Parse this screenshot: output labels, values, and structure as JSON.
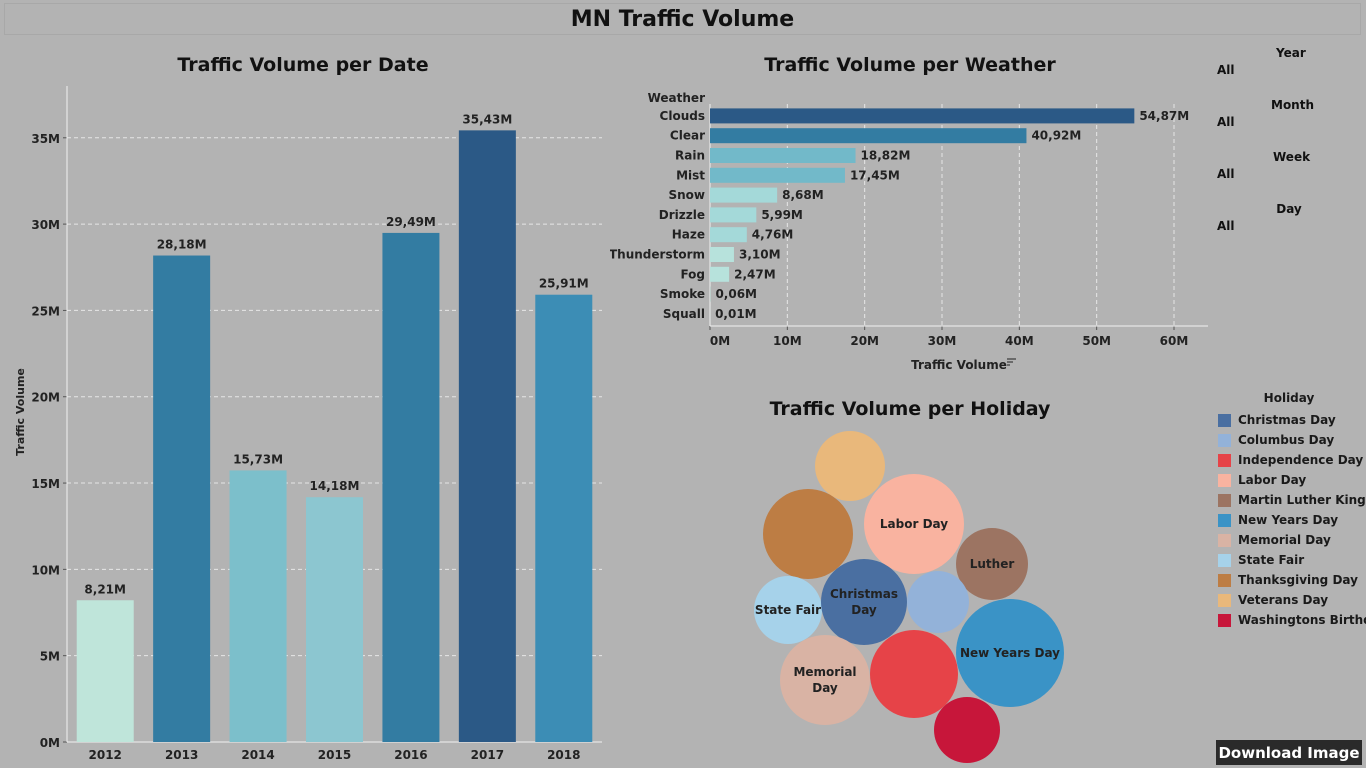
{
  "dashboard_title": "MN Traffic Volume",
  "download_label": "Download Image",
  "filters": [
    {
      "label": "Year",
      "value": "All"
    },
    {
      "label": "Month",
      "value": "All"
    },
    {
      "label": "Week",
      "value": "All"
    },
    {
      "label": "Day",
      "value": "All"
    }
  ],
  "legend": {
    "title": "Holiday",
    "items": [
      {
        "label": "Christmas Day",
        "color": "#4a6fa1"
      },
      {
        "label": "Columbus Day",
        "color": "#93b2d9"
      },
      {
        "label": "Independence Day",
        "color": "#e64348"
      },
      {
        "label": "Labor Day",
        "color": "#f9b3a0"
      },
      {
        "label": "Martin Luther King J..",
        "color": "#9c7462"
      },
      {
        "label": "New Years Day",
        "color": "#3a93c6"
      },
      {
        "label": "Memorial Day",
        "color": "#d9b3a4"
      },
      {
        "label": "State Fair",
        "color": "#a6d2ea"
      },
      {
        "label": "Thanksgiving Day",
        "color": "#bd7d44"
      },
      {
        "label": "Veterans Day",
        "color": "#e9b87b"
      },
      {
        "label": "Washingtons Birthd..",
        "color": "#c7163a"
      }
    ]
  },
  "chart_data": [
    {
      "id": "date",
      "type": "bar",
      "title": "Traffic Volume per Date",
      "ylabel": "Traffic Volume",
      "xlabel": "",
      "ylim": [
        0,
        38
      ],
      "yticks": [
        "0M",
        "5M",
        "10M",
        "15M",
        "20M",
        "25M",
        "30M",
        "35M"
      ],
      "categories": [
        "2012",
        "2013",
        "2014",
        "2015",
        "2016",
        "2017",
        "2018"
      ],
      "values": [
        8.21,
        28.18,
        15.73,
        14.18,
        29.49,
        35.43,
        25.91
      ],
      "value_labels": [
        "8,21M",
        "28,18M",
        "15,73M",
        "14,18M",
        "29,49M",
        "35,43M",
        "25,91M"
      ],
      "colors": [
        "#bfe5da",
        "#337ca2",
        "#7cbfcb",
        "#8cc6d0",
        "#337ca2",
        "#2b5986",
        "#3c8db5"
      ],
      "grid": true
    },
    {
      "id": "weather",
      "type": "bar",
      "orientation": "horizontal",
      "title": "Traffic Volume per Weather",
      "category_header": "Weather",
      "xlabel": "Traffic Volume",
      "xlim": [
        0,
        62
      ],
      "xticks": [
        "0M",
        "10M",
        "20M",
        "30M",
        "40M",
        "50M",
        "60M"
      ],
      "categories": [
        "Clouds",
        "Clear",
        "Rain",
        "Mist",
        "Snow",
        "Drizzle",
        "Haze",
        "Thunderstorm",
        "Fog",
        "Smoke",
        "Squall"
      ],
      "values": [
        54.87,
        40.92,
        18.82,
        17.45,
        8.68,
        5.99,
        4.76,
        3.1,
        2.47,
        0.06,
        0.01
      ],
      "value_labels": [
        "54,87M",
        "40,92M",
        "18,82M",
        "17,45M",
        "8,68M",
        "5,99M",
        "4,76M",
        "3,10M",
        "2,47M",
        "0,06M",
        "0,01M"
      ],
      "colors": [
        "#2b5986",
        "#337ca2",
        "#72b9c9",
        "#72b9c9",
        "#a4d9d9",
        "#a4d9d9",
        "#a4d9d9",
        "#b7e2dc",
        "#b7e2dc",
        "#c4e8e0",
        "#c4e8e0"
      ],
      "grid": true
    },
    {
      "id": "holiday",
      "type": "bubble",
      "title": "Traffic Volume per Holiday",
      "bubbles": [
        {
          "holiday": "Veterans Day",
          "label": ""
        },
        {
          "holiday": "Thanksgiving Day",
          "label": ""
        },
        {
          "holiday": "Labor Day",
          "label": "Labor Day"
        },
        {
          "holiday": "Martin Luther King J..",
          "label": "Luther"
        },
        {
          "holiday": "State Fair",
          "label": "State Fair"
        },
        {
          "holiday": "Christmas Day",
          "label": "Christmas Day"
        },
        {
          "holiday": "Columbus Day",
          "label": ""
        },
        {
          "holiday": "New Years Day",
          "label": "New Years Day"
        },
        {
          "holiday": "Memorial Day",
          "label": "Memorial Day"
        },
        {
          "holiday": "Independence Day",
          "label": ""
        },
        {
          "holiday": "Washingtons Birthd..",
          "label": ""
        }
      ]
    }
  ]
}
